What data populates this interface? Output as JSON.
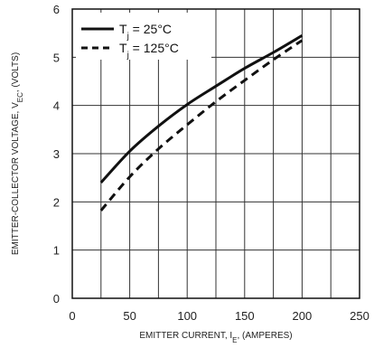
{
  "chart_data": {
    "type": "line",
    "xlabel": {
      "main": "EMITTER CURRENT, I",
      "sub": "E",
      "unit": ", (AMPERES)"
    },
    "ylabel": {
      "main": "EMITTER-COLLECTOR VOLTAGE, V",
      "sub": "EC",
      "unit": ", (VOLTS)"
    },
    "xlim": [
      0,
      250
    ],
    "ylim": [
      0,
      6
    ],
    "x_ticks": [
      "0",
      "50",
      "100",
      "150",
      "200",
      "250"
    ],
    "y_ticks": [
      "0",
      "1",
      "2",
      "3",
      "4",
      "5",
      "6"
    ],
    "grid": true,
    "grid_minor_x": true,
    "legend_position": "top-left",
    "series": [
      {
        "name": "T_j = 25°C",
        "legend": {
          "main": "T",
          "sub": "j",
          "rest": " = 25°C"
        },
        "style": "solid",
        "color": "#111111",
        "x": [
          25,
          50,
          75,
          100,
          125,
          150,
          175,
          200
        ],
        "y": [
          2.4,
          3.05,
          3.57,
          4.02,
          4.4,
          4.77,
          5.1,
          5.45
        ]
      },
      {
        "name": "T_j = 125°C",
        "legend": {
          "main": "T",
          "sub": "j",
          "rest": " = 125°C"
        },
        "style": "dashed",
        "color": "#111111",
        "x": [
          25,
          50,
          75,
          100,
          125,
          150,
          175,
          200
        ],
        "y": [
          1.82,
          2.52,
          3.1,
          3.6,
          4.08,
          4.52,
          4.95,
          5.35
        ]
      }
    ]
  }
}
